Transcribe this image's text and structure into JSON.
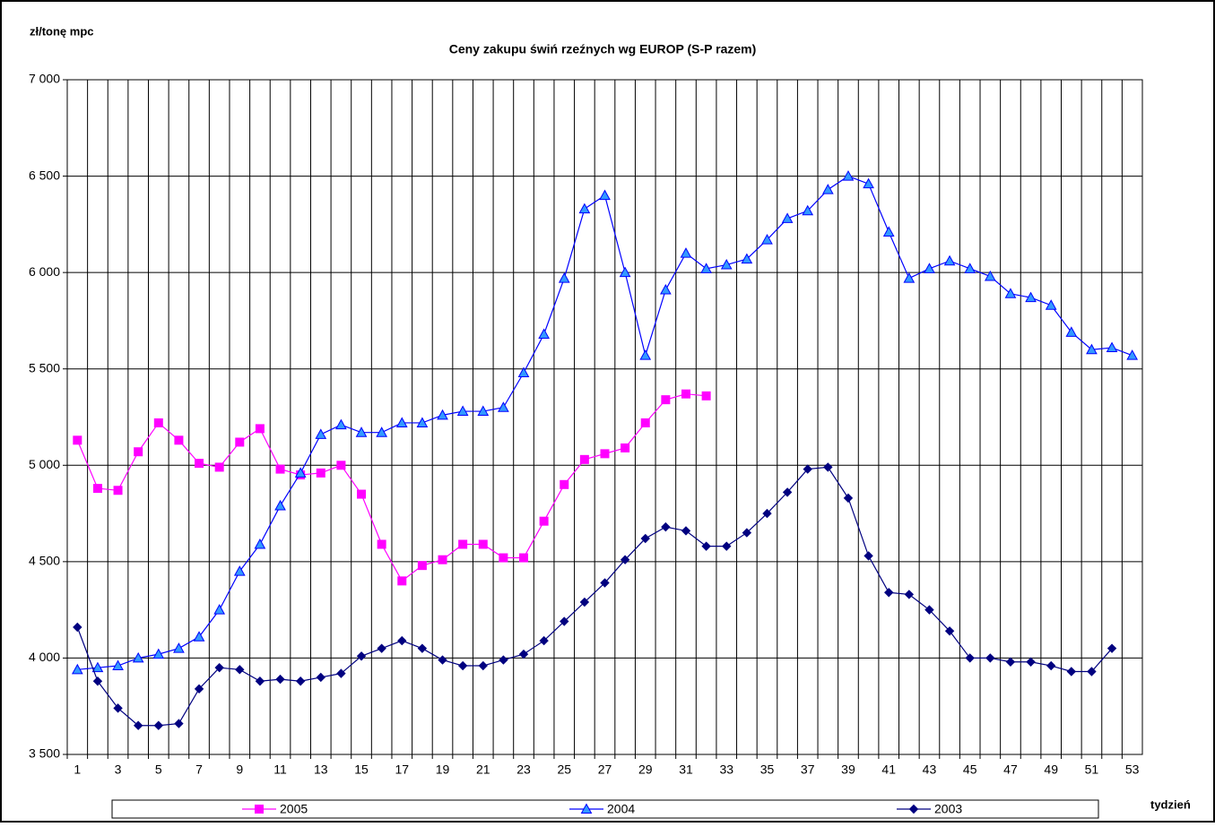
{
  "chart_data": {
    "type": "line",
    "title": "Ceny zakupu świń rzeźnych wg EUROP (S-P razem)",
    "y_label": "zł/tonę mpc",
    "x_label": "tydzień",
    "categories": [
      "1",
      null,
      "3",
      null,
      "5",
      null,
      "7",
      null,
      "9",
      null,
      "11",
      null,
      "13",
      null,
      "15",
      null,
      "17",
      null,
      "19",
      null,
      "21",
      null,
      "23",
      null,
      "25",
      null,
      "27",
      null,
      "29",
      null,
      "31",
      null,
      "33",
      null,
      "35",
      null,
      "37",
      null,
      "39",
      null,
      "41",
      null,
      "43",
      null,
      "45",
      null,
      "47",
      null,
      "49",
      null,
      "51",
      null,
      "53"
    ],
    "series": [
      {
        "name": "2005",
        "color": "#ff00ff",
        "marker": "square",
        "values": [
          5130,
          4880,
          4870,
          5070,
          5220,
          5130,
          5010,
          4990,
          5120,
          5190,
          4980,
          4950,
          4960,
          5000,
          4850,
          4590,
          4400,
          4480,
          4510,
          4590,
          4590,
          4520,
          4520,
          4710,
          4900,
          5030,
          5060,
          5090,
          5220,
          5340,
          5370,
          5360,
          null,
          null,
          null,
          null,
          null,
          null,
          null,
          null,
          null,
          null,
          null,
          null,
          null,
          null,
          null,
          null,
          null,
          null,
          null,
          null,
          null
        ]
      },
      {
        "name": "2004",
        "color": "#0000ff",
        "marker": "triangle",
        "values": [
          3940,
          3950,
          3960,
          4000,
          4020,
          4050,
          4110,
          4250,
          4450,
          4590,
          4790,
          4960,
          5160,
          5210,
          5170,
          5170,
          5220,
          5220,
          5260,
          5280,
          5280,
          5300,
          5480,
          5680,
          5970,
          6330,
          6400,
          6000,
          5570,
          5910,
          6100,
          6020,
          6040,
          6070,
          6170,
          6280,
          6320,
          6430,
          6500,
          6460,
          6210,
          5970,
          6020,
          6060,
          6020,
          5980,
          5890,
          5870,
          5830,
          5690,
          5600,
          5610,
          5570
        ]
      },
      {
        "name": "2003",
        "color": "#000080",
        "marker": "diamond",
        "values": [
          4160,
          3880,
          3740,
          3650,
          3650,
          3660,
          3840,
          3950,
          3940,
          3880,
          3890,
          3880,
          3900,
          3920,
          4010,
          4050,
          4090,
          4050,
          3990,
          3960,
          3960,
          3990,
          4020,
          4090,
          4190,
          4290,
          4390,
          4510,
          4620,
          4680,
          4660,
          4580,
          4580,
          4650,
          4750,
          4860,
          4980,
          4990,
          4830,
          4530,
          4340,
          4330,
          4250,
          4140,
          4000,
          4000,
          3980,
          3980,
          3960,
          3930,
          3930,
          4050,
          null
        ]
      }
    ],
    "ylim": [
      3500,
      7000
    ],
    "yticks": [
      {
        "value": 3500,
        "label": "3 500"
      },
      {
        "value": 4000,
        "label": "4 000"
      },
      {
        "value": 4500,
        "label": "4 500"
      },
      {
        "value": 5000,
        "label": "5 000"
      },
      {
        "value": 5500,
        "label": "5 500"
      },
      {
        "value": 6000,
        "label": "6 000"
      },
      {
        "value": 6500,
        "label": "6 500"
      },
      {
        "value": 7000,
        "label": "7 000"
      }
    ],
    "grid": true,
    "legend": "bottom"
  }
}
